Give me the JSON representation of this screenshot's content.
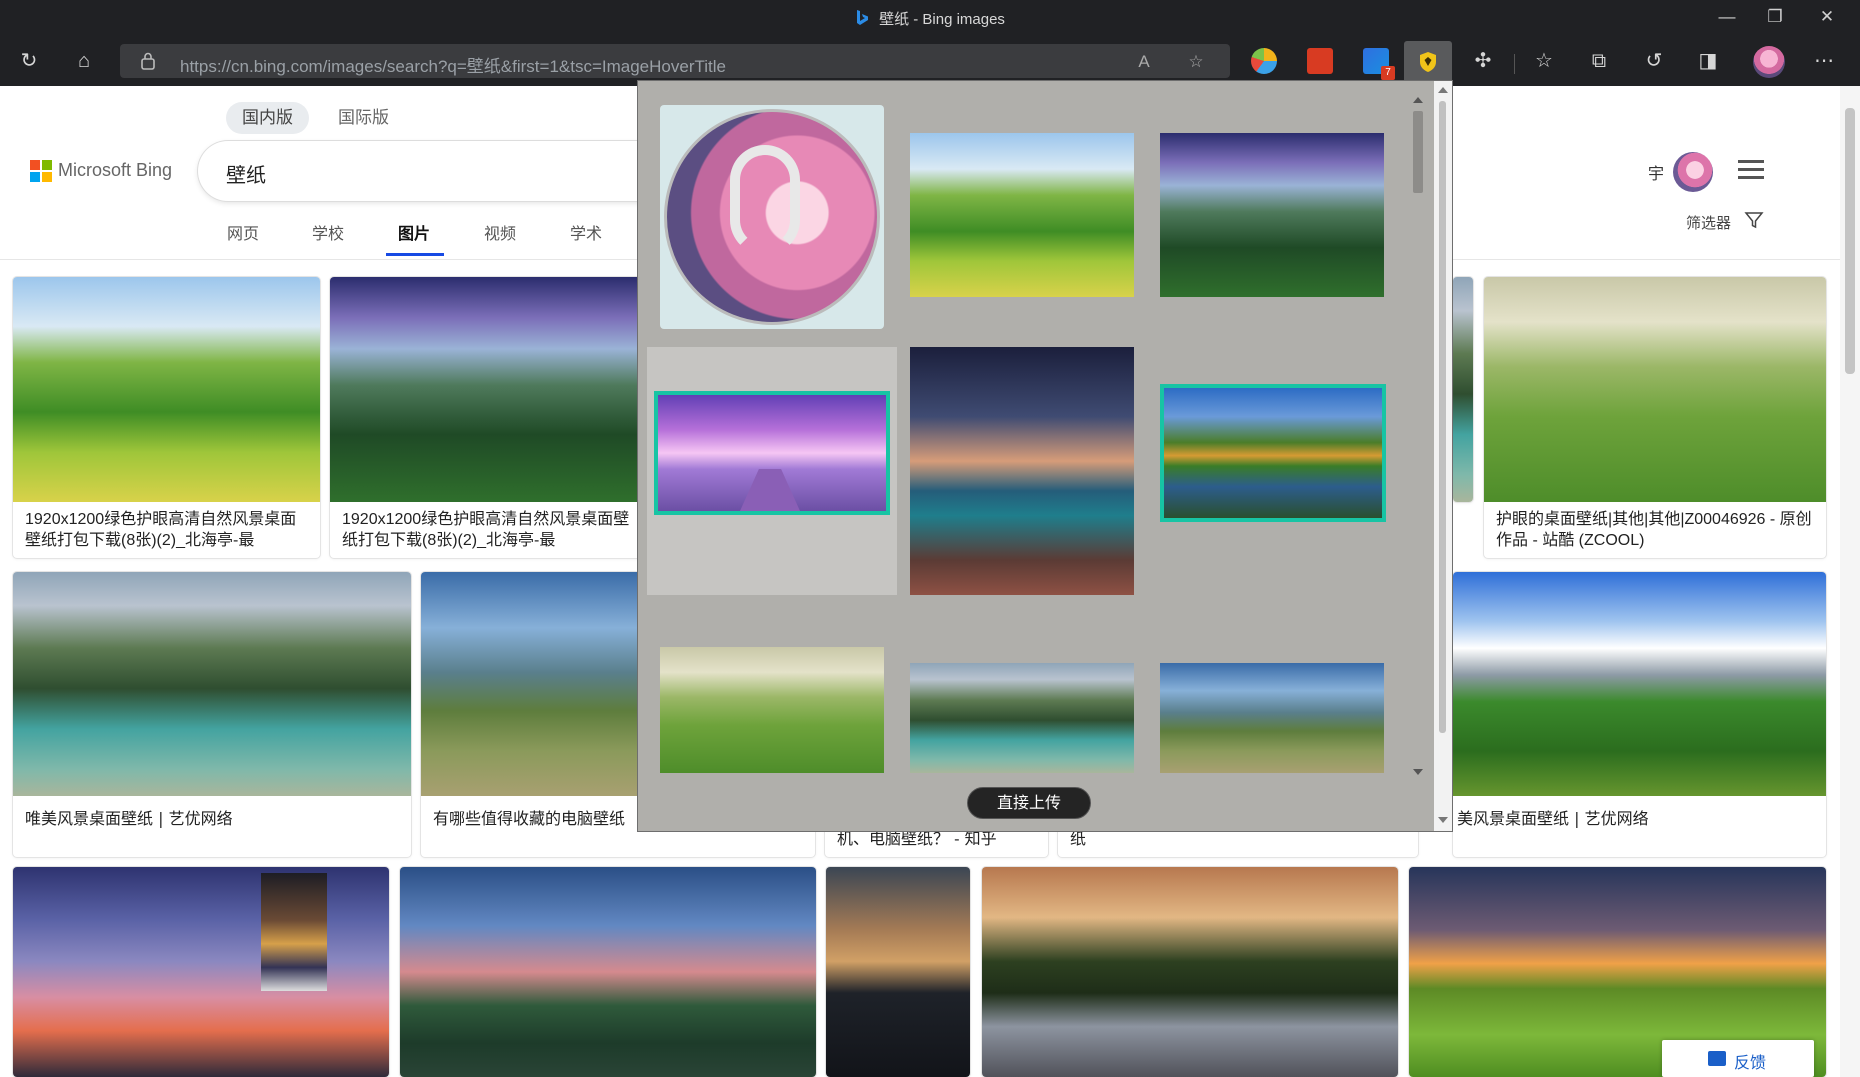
{
  "window": {
    "title": "壁纸 - Bing images",
    "minimize_glyph": "—",
    "maximize_glyph": "❐",
    "close_glyph": "✕"
  },
  "toolbar": {
    "url": "https://cn.bing.com/images/search?q=壁纸&first=1&tsc=ImageHoverTitle",
    "reload_glyph": "↻",
    "home_glyph": "⌂",
    "read_aloud_glyph": "A",
    "favorite_glyph": "☆",
    "extension_badge": "7",
    "extensions_glyph": "✣",
    "favorites_glyph": "☆",
    "collections_glyph": "⧉",
    "history_glyph": "↺",
    "split_glyph": "◨",
    "more_glyph": "⋯",
    "colors": {
      "chrome_bg": "#202124",
      "address_bg": "#3b3c3f"
    }
  },
  "bing": {
    "scope_tabs": [
      "国内版",
      "国际版"
    ],
    "scope_active": "国内版",
    "logo_text": "Microsoft Bing",
    "query": "壁纸",
    "nav_tabs": [
      "网页",
      "学校",
      "图片",
      "视频",
      "学术"
    ],
    "nav_active": "图片",
    "user_name": "宇",
    "filter_label": "筛选器",
    "accent": "#174ae4"
  },
  "results": {
    "row1": [
      {
        "caption": "1920x1200绿色护眼高清自然风景桌面壁纸打包下载(8张)(2)_北海亭-最"
      },
      {
        "caption": "1920x1200绿色护眼高清自然风景桌面壁纸打包下载(8张)(2)_北海亭-最"
      },
      {
        "caption": "护眼的桌面壁纸|其他|其他|Z00046926 - 原创作品 - 站酷 (ZCOOL)"
      }
    ],
    "row2": [
      {
        "caption": "唯美风景桌面壁纸 | 艺优网络"
      },
      {
        "caption": "有哪些值得收藏的电脑壁纸"
      },
      {
        "caption": "机、电脑壁纸？ - 知乎"
      },
      {
        "caption": "纸"
      },
      {
        "caption": "美风景桌面壁纸 | 艺优网络"
      }
    ]
  },
  "popup": {
    "upload_label": "直接上传",
    "images": [
      {
        "name": "anime-avatar",
        "selected": false
      },
      {
        "name": "green-hills",
        "selected": false
      },
      {
        "name": "rock-valley",
        "selected": false
      },
      {
        "name": "purple-pier",
        "selected": true
      },
      {
        "name": "milky-way-coast",
        "selected": false
      },
      {
        "name": "tree-lake",
        "selected": true
      },
      {
        "name": "misty-hills",
        "selected": false
      },
      {
        "name": "mountain-lake",
        "selected": false
      },
      {
        "name": "meadow-tree",
        "selected": false
      }
    ],
    "selection_color": "#17c4a4"
  },
  "feedback": {
    "label": "反馈"
  }
}
